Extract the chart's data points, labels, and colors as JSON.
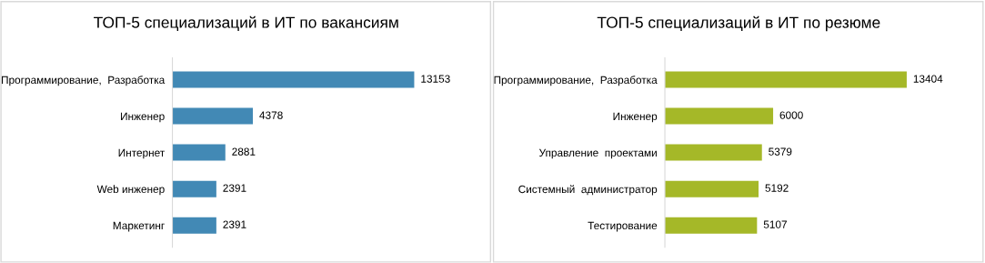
{
  "chart_data": [
    {
      "type": "bar",
      "orientation": "horizontal",
      "title": "ТОП-5 специализаций в ИТ по вакансиям",
      "categories": [
        "Программирование,  Разработка",
        "Инженер",
        "Интернет",
        "Web инженер",
        "Маркетинг"
      ],
      "values": [
        13153,
        4378,
        2881,
        2391,
        2391
      ],
      "color": "#4289b5",
      "data_labels": true,
      "tick_labels": "y",
      "grid": false,
      "legend": false
    },
    {
      "type": "bar",
      "orientation": "horizontal",
      "title": "ТОП-5 специализаций в ИТ по резюме",
      "categories": [
        "Программирование,  Разработка",
        "Инженер",
        "Управление  проектами",
        "Системный  администратор",
        "Тестирование"
      ],
      "values": [
        13404,
        6000,
        5379,
        5192,
        5107
      ],
      "color": "#a5b828",
      "data_labels": true,
      "tick_labels": "y",
      "grid": false,
      "legend": false
    }
  ]
}
